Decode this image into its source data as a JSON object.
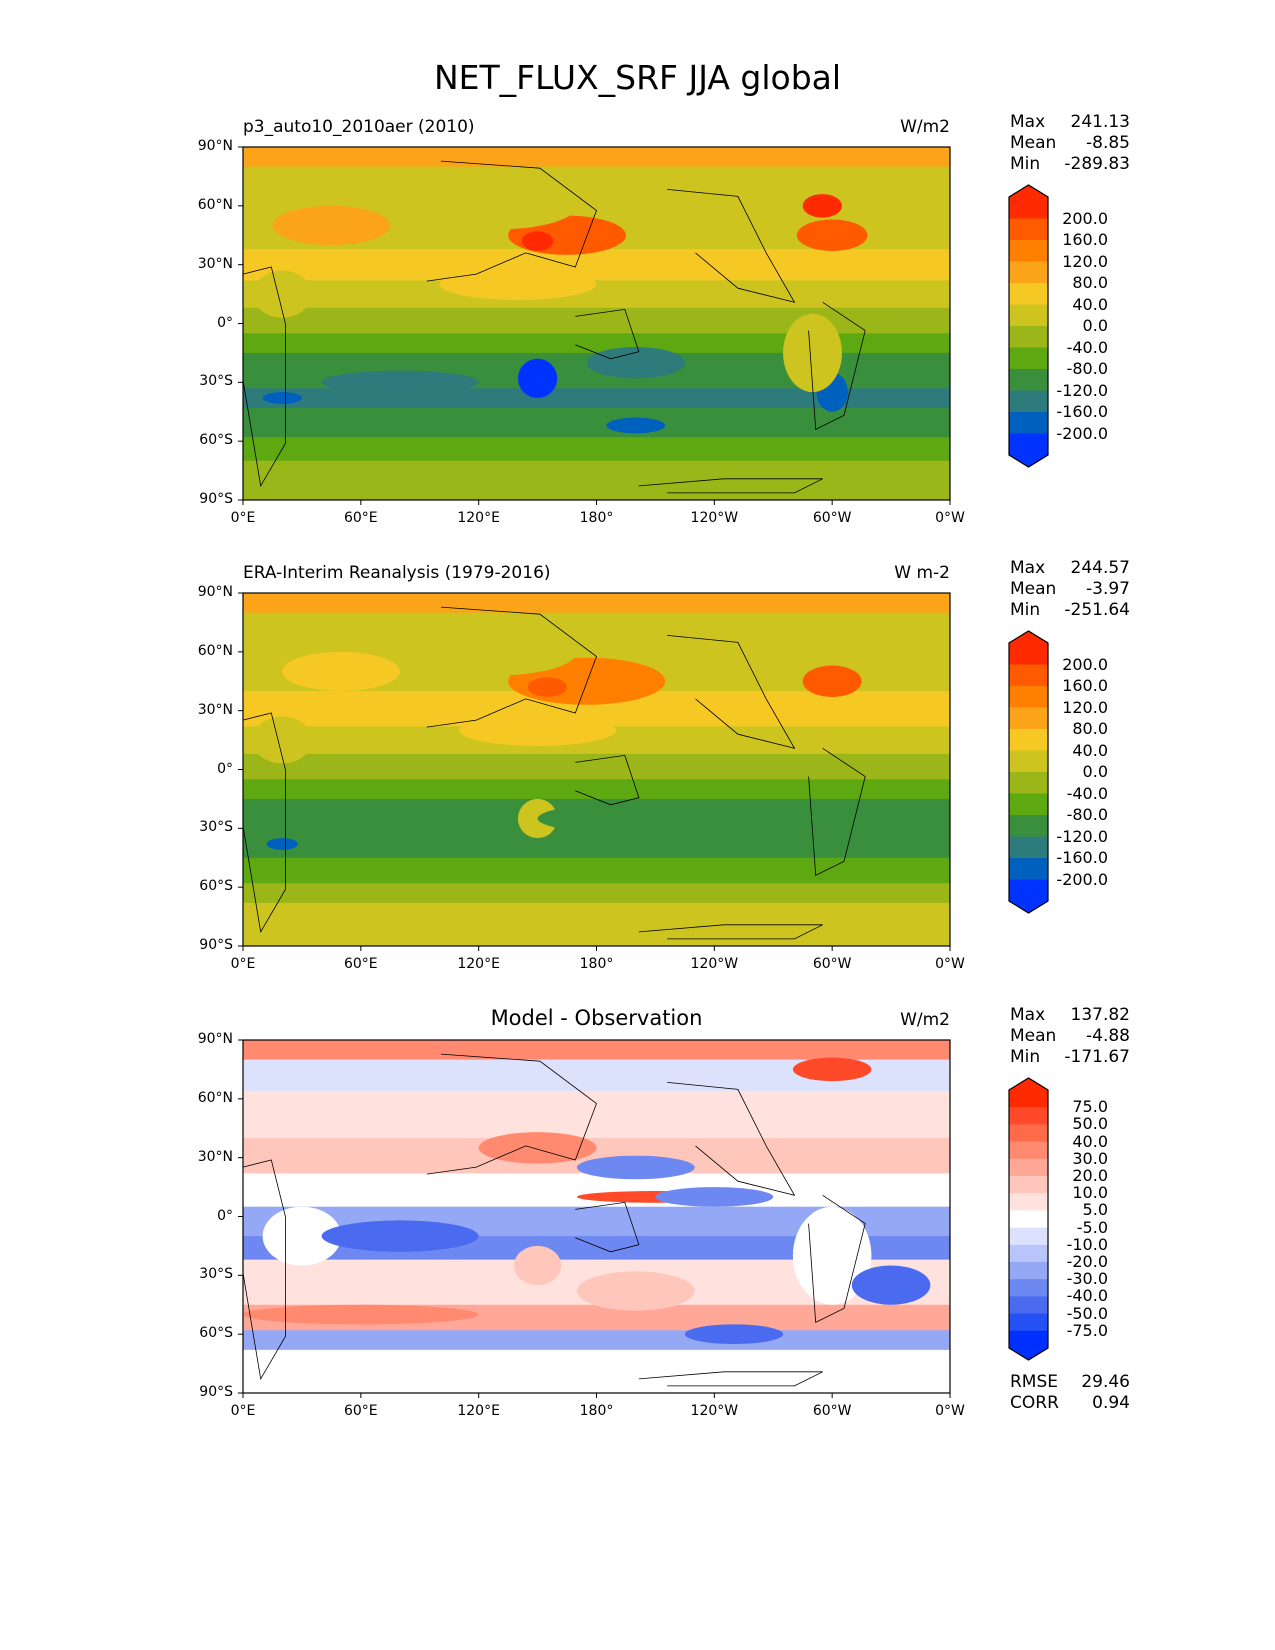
{
  "title": "NET_FLUX_SRF JJA global",
  "x_ticks": [
    "0°E",
    "60°E",
    "120°E",
    "180°",
    "120°W",
    "60°W",
    "0°W"
  ],
  "y_ticks": [
    "90°N",
    "60°N",
    "30°N",
    "0°",
    "30°S",
    "60°S",
    "90°S"
  ],
  "panels": [
    {
      "left_title": "p3_auto10_2010aer (2010)",
      "center_title": "",
      "units": "W/m2",
      "stats": {
        "max_label": "Max",
        "max": "241.13",
        "mean_label": "Mean",
        "mean": "-8.85",
        "min_label": "Min",
        "min": "-289.83"
      },
      "colorbar": {
        "ticks": [
          "200.0",
          "160.0",
          "120.0",
          "80.0",
          "40.0",
          "0.0",
          "-40.0",
          "-80.0",
          "-120.0",
          "-160.0",
          "-200.0"
        ],
        "colors": [
          "#ff2a00",
          "#ff5a00",
          "#ff8000",
          "#fba41a",
          "#f6c823",
          "#cdc41f",
          "#9ab619",
          "#5ea812",
          "#3a8f3c",
          "#2d7b7a",
          "#0060be",
          "#0033ff"
        ]
      }
    },
    {
      "left_title": "ERA-Interim Reanalysis (1979-2016)",
      "center_title": "",
      "units": "W m-2",
      "stats": {
        "max_label": "Max",
        "max": "244.57",
        "mean_label": "Mean",
        "mean": "-3.97",
        "min_label": "Min",
        "min": "-251.64"
      },
      "colorbar": {
        "ticks": [
          "200.0",
          "160.0",
          "120.0",
          "80.0",
          "40.0",
          "0.0",
          "-40.0",
          "-80.0",
          "-120.0",
          "-160.0",
          "-200.0"
        ],
        "colors": [
          "#ff2a00",
          "#ff5a00",
          "#ff8000",
          "#fba41a",
          "#f6c823",
          "#cdc41f",
          "#9ab619",
          "#5ea812",
          "#3a8f3c",
          "#2d7b7a",
          "#0060be",
          "#0033ff"
        ]
      }
    },
    {
      "left_title": "",
      "center_title": "Model - Observation",
      "units": "W/m2",
      "stats": {
        "max_label": "Max",
        "max": "137.82",
        "mean_label": "Mean",
        "mean": "-4.88",
        "min_label": "Min",
        "min": "-171.67"
      },
      "colorbar": {
        "ticks": [
          "75.0",
          "50.0",
          "40.0",
          "30.0",
          "20.0",
          "10.0",
          "5.0",
          "-5.0",
          "-10.0",
          "-20.0",
          "-30.0",
          "-40.0",
          "-50.0",
          "-75.0"
        ],
        "colors": [
          "#ff2a00",
          "#ff4a2a",
          "#ff6a48",
          "#ff8a70",
          "#ffa898",
          "#ffc6bc",
          "#ffe2de",
          "#ffffff",
          "#dce2fc",
          "#b8c4fa",
          "#94a8f6",
          "#6e88f2",
          "#4a6af0",
          "#2450f4",
          "#0030ff"
        ]
      },
      "rmse_label": "RMSE",
      "rmse": "29.46",
      "corr_label": "CORR",
      "corr": "0.94"
    }
  ]
}
